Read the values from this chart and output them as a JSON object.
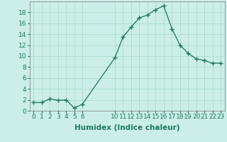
{
  "x": [
    0,
    1,
    2,
    3,
    4,
    5,
    6,
    10,
    11,
    12,
    13,
    14,
    15,
    16,
    17,
    18,
    19,
    20,
    21,
    22,
    23
  ],
  "y": [
    1.5,
    1.5,
    2.2,
    1.9,
    2.0,
    0.5,
    1.2,
    9.7,
    13.5,
    15.3,
    17.0,
    17.5,
    18.5,
    19.2,
    15.0,
    12.0,
    10.5,
    9.5,
    9.2,
    8.7,
    8.7
  ],
  "line_color": "#1a7a5e",
  "marker": "+",
  "marker_size": 4,
  "marker_lw": 1.0,
  "bg_color": "#cceee8",
  "grid_color": "#aaddcc",
  "xlabel": "Humidex (Indice chaleur)",
  "xlim": [
    -0.5,
    23.5
  ],
  "ylim": [
    0,
    20
  ],
  "xticks": [
    0,
    1,
    2,
    3,
    4,
    5,
    6,
    10,
    11,
    12,
    13,
    14,
    15,
    16,
    17,
    18,
    19,
    20,
    21,
    22,
    23
  ],
  "yticks": [
    0,
    2,
    4,
    6,
    8,
    10,
    12,
    14,
    16,
    18
  ],
  "tick_label_fontsize": 6.5,
  "xlabel_fontsize": 7.5
}
